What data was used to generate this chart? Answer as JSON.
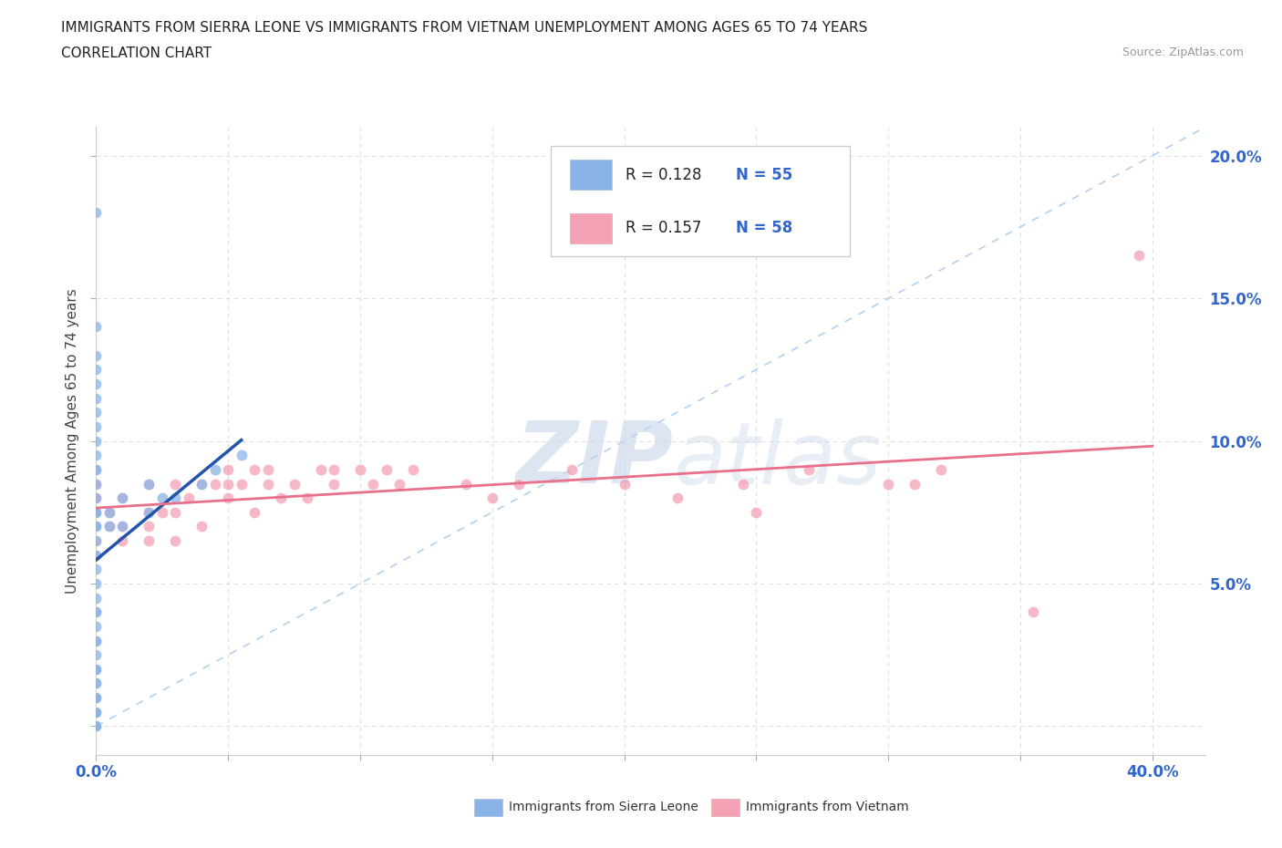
{
  "title_line1": "IMMIGRANTS FROM SIERRA LEONE VS IMMIGRANTS FROM VIETNAM UNEMPLOYMENT AMONG AGES 65 TO 74 YEARS",
  "title_line2": "CORRELATION CHART",
  "source_text": "Source: ZipAtlas.com",
  "ylabel": "Unemployment Among Ages 65 to 74 years",
  "xlim": [
    0.0,
    0.42
  ],
  "ylim": [
    -0.01,
    0.21
  ],
  "x_ticks": [
    0.0,
    0.05,
    0.1,
    0.15,
    0.2,
    0.25,
    0.3,
    0.35,
    0.4
  ],
  "y_ticks": [
    0.0,
    0.05,
    0.1,
    0.15,
    0.2
  ],
  "sierra_leone_color": "#8ab4e8",
  "vietnam_color": "#f4a0b5",
  "sierra_leone_trend_color": "#2255aa",
  "vietnam_trend_color": "#e8708a",
  "legend_R_sierra": "R = 0.128",
  "legend_N_sierra": "N = 55",
  "legend_R_vietnam": "R = 0.157",
  "legend_N_vietnam": "N = 58",
  "watermark_ZIP": "ZIP",
  "watermark_atlas": "atlas",
  "sierra_leone_x": [
    0.0,
    0.0,
    0.0,
    0.0,
    0.0,
    0.0,
    0.0,
    0.0,
    0.0,
    0.0,
    0.0,
    0.0,
    0.0,
    0.0,
    0.0,
    0.0,
    0.0,
    0.0,
    0.0,
    0.0,
    0.0,
    0.0,
    0.0,
    0.0,
    0.0,
    0.0,
    0.0,
    0.0,
    0.0,
    0.0,
    0.0,
    0.0,
    0.0,
    0.0,
    0.0,
    0.0,
    0.0,
    0.0,
    0.0,
    0.0,
    0.0,
    0.0,
    0.0,
    0.0,
    0.005,
    0.005,
    0.01,
    0.01,
    0.02,
    0.02,
    0.025,
    0.03,
    0.04,
    0.045,
    0.055
  ],
  "sierra_leone_y": [
    0.0,
    0.0,
    0.0,
    0.005,
    0.005,
    0.005,
    0.01,
    0.01,
    0.01,
    0.015,
    0.015,
    0.02,
    0.02,
    0.02,
    0.025,
    0.03,
    0.03,
    0.035,
    0.04,
    0.04,
    0.045,
    0.05,
    0.055,
    0.06,
    0.06,
    0.065,
    0.07,
    0.07,
    0.075,
    0.075,
    0.08,
    0.085,
    0.09,
    0.09,
    0.095,
    0.1,
    0.105,
    0.11,
    0.115,
    0.12,
    0.125,
    0.13,
    0.14,
    0.18,
    0.07,
    0.075,
    0.07,
    0.08,
    0.075,
    0.085,
    0.08,
    0.08,
    0.085,
    0.09,
    0.095
  ],
  "vietnam_x": [
    0.0,
    0.0,
    0.0,
    0.0,
    0.0,
    0.0,
    0.0,
    0.0,
    0.005,
    0.005,
    0.01,
    0.01,
    0.01,
    0.02,
    0.02,
    0.02,
    0.02,
    0.025,
    0.03,
    0.03,
    0.03,
    0.035,
    0.04,
    0.04,
    0.045,
    0.05,
    0.05,
    0.05,
    0.055,
    0.06,
    0.06,
    0.065,
    0.065,
    0.07,
    0.075,
    0.08,
    0.085,
    0.09,
    0.09,
    0.1,
    0.105,
    0.11,
    0.115,
    0.12,
    0.14,
    0.15,
    0.16,
    0.18,
    0.2,
    0.22,
    0.245,
    0.25,
    0.27,
    0.3,
    0.31,
    0.32,
    0.355,
    0.395
  ],
  "vietnam_y": [
    0.065,
    0.07,
    0.075,
    0.075,
    0.075,
    0.08,
    0.08,
    0.085,
    0.07,
    0.075,
    0.065,
    0.07,
    0.08,
    0.065,
    0.07,
    0.075,
    0.085,
    0.075,
    0.065,
    0.075,
    0.085,
    0.08,
    0.07,
    0.085,
    0.085,
    0.08,
    0.085,
    0.09,
    0.085,
    0.075,
    0.09,
    0.085,
    0.09,
    0.08,
    0.085,
    0.08,
    0.09,
    0.085,
    0.09,
    0.09,
    0.085,
    0.09,
    0.085,
    0.09,
    0.085,
    0.08,
    0.085,
    0.09,
    0.085,
    0.08,
    0.085,
    0.075,
    0.09,
    0.085,
    0.085,
    0.09,
    0.04,
    0.165
  ],
  "sl_trend_x": [
    0.0,
    0.055
  ],
  "vn_trend_x": [
    0.0,
    0.4
  ],
  "diag_color": "#aaccee",
  "grid_color": "#e0e0e0",
  "grid_dash": [
    4,
    4
  ]
}
